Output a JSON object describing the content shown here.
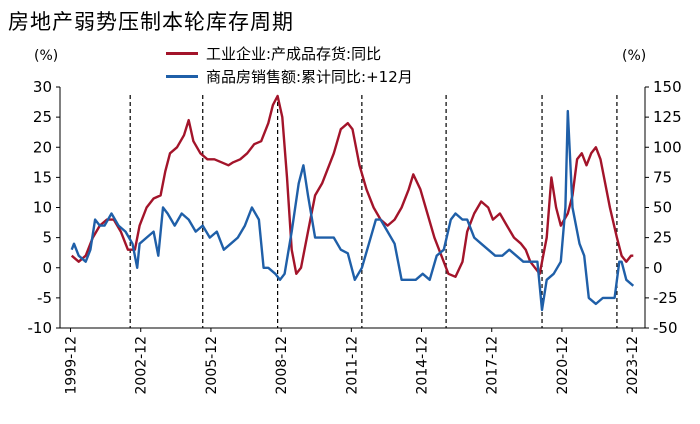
{
  "title": "房地产弱势压制本轮库存周期",
  "chart_data": {
    "type": "line",
    "title": "房地产弱势压制本轮库存周期",
    "left_axis_unit": "(%)",
    "right_axis_unit": "(%)",
    "ylim_left": [
      -10,
      30
    ],
    "ylim_right": [
      -50,
      150
    ],
    "yticks_left": [
      "30",
      "25",
      "20",
      "15",
      "10",
      "5",
      "0",
      "-5",
      "-10"
    ],
    "yticks_right": [
      "150",
      "125",
      "100",
      "75",
      "50",
      "25",
      "0",
      "-25",
      "-50"
    ],
    "x_tick_labels": [
      "1999-12",
      "2002-12",
      "2005-12",
      "2008-12",
      "2011-12",
      "2014-12",
      "2017-12",
      "2020-12",
      "2023-12"
    ],
    "vertical_dashed_lines_at": [
      2002.5,
      2005.6,
      2008.8,
      2012.4,
      2016.0,
      2020.1,
      2023.3
    ],
    "series": [
      {
        "name": "工业企业:产成品存货:同比",
        "axis": "left",
        "color": "#a3142a",
        "points": [
          [
            2000.0,
            2
          ],
          [
            2000.3,
            1
          ],
          [
            2000.6,
            2
          ],
          [
            2000.9,
            5
          ],
          [
            2001.2,
            7
          ],
          [
            2001.5,
            8
          ],
          [
            2001.8,
            8
          ],
          [
            2002.1,
            6
          ],
          [
            2002.4,
            3
          ],
          [
            2002.7,
            3
          ],
          [
            2002.9,
            7
          ],
          [
            2003.2,
            10
          ],
          [
            2003.5,
            11.5
          ],
          [
            2003.8,
            12
          ],
          [
            2004.0,
            16
          ],
          [
            2004.2,
            19
          ],
          [
            2004.5,
            20
          ],
          [
            2004.8,
            22
          ],
          [
            2005.0,
            24.5
          ],
          [
            2005.2,
            21
          ],
          [
            2005.5,
            19
          ],
          [
            2005.8,
            18
          ],
          [
            2006.1,
            18
          ],
          [
            2006.4,
            17.5
          ],
          [
            2006.7,
            17
          ],
          [
            2006.9,
            17.5
          ],
          [
            2007.2,
            18
          ],
          [
            2007.5,
            19
          ],
          [
            2007.8,
            20.5
          ],
          [
            2008.1,
            21
          ],
          [
            2008.4,
            24
          ],
          [
            2008.6,
            27
          ],
          [
            2008.8,
            28.5
          ],
          [
            2009.0,
            25
          ],
          [
            2009.2,
            15
          ],
          [
            2009.4,
            3
          ],
          [
            2009.6,
            -1
          ],
          [
            2009.8,
            0
          ],
          [
            2010.1,
            6
          ],
          [
            2010.4,
            12
          ],
          [
            2010.7,
            14
          ],
          [
            2010.9,
            16
          ],
          [
            2011.2,
            19
          ],
          [
            2011.5,
            23
          ],
          [
            2011.8,
            24
          ],
          [
            2012.0,
            23
          ],
          [
            2012.3,
            17
          ],
          [
            2012.6,
            13
          ],
          [
            2012.9,
            10
          ],
          [
            2013.2,
            8
          ],
          [
            2013.5,
            7
          ],
          [
            2013.8,
            8
          ],
          [
            2014.1,
            10
          ],
          [
            2014.4,
            13
          ],
          [
            2014.6,
            15.5
          ],
          [
            2014.9,
            13
          ],
          [
            2015.2,
            9
          ],
          [
            2015.5,
            5
          ],
          [
            2015.8,
            2
          ],
          [
            2016.1,
            -1
          ],
          [
            2016.4,
            -1.5
          ],
          [
            2016.7,
            1
          ],
          [
            2016.9,
            6
          ],
          [
            2017.2,
            9
          ],
          [
            2017.5,
            11
          ],
          [
            2017.8,
            10
          ],
          [
            2018.0,
            8
          ],
          [
            2018.3,
            9
          ],
          [
            2018.6,
            7
          ],
          [
            2018.9,
            5
          ],
          [
            2019.2,
            4
          ],
          [
            2019.4,
            3
          ],
          [
            2019.6,
            1
          ],
          [
            2019.8,
            0
          ],
          [
            2020.0,
            -1
          ],
          [
            2020.3,
            5
          ],
          [
            2020.5,
            15
          ],
          [
            2020.7,
            10
          ],
          [
            2020.9,
            7
          ],
          [
            2021.2,
            9
          ],
          [
            2021.4,
            12
          ],
          [
            2021.6,
            18
          ],
          [
            2021.8,
            19
          ],
          [
            2022.0,
            17
          ],
          [
            2022.2,
            19
          ],
          [
            2022.4,
            20
          ],
          [
            2022.6,
            18
          ],
          [
            2022.8,
            14
          ],
          [
            2023.0,
            10
          ],
          [
            2023.3,
            5
          ],
          [
            2023.5,
            2
          ],
          [
            2023.7,
            1
          ],
          [
            2023.9,
            2
          ],
          [
            2024.0,
            2
          ]
        ]
      },
      {
        "name": "商品房销售额:累计同比:+12月",
        "axis": "right",
        "color": "#1f5fa8",
        "points": [
          [
            2000.0,
            15
          ],
          [
            2000.1,
            20
          ],
          [
            2000.3,
            10
          ],
          [
            2000.6,
            5
          ],
          [
            2000.8,
            15
          ],
          [
            2001.0,
            40
          ],
          [
            2001.2,
            35
          ],
          [
            2001.4,
            35
          ],
          [
            2001.7,
            45
          ],
          [
            2002.0,
            35
          ],
          [
            2002.3,
            30
          ],
          [
            2002.6,
            20
          ],
          [
            2002.8,
            0
          ],
          [
            2002.9,
            20
          ],
          [
            2003.2,
            25
          ],
          [
            2003.5,
            30
          ],
          [
            2003.7,
            10
          ],
          [
            2003.9,
            50
          ],
          [
            2004.1,
            45
          ],
          [
            2004.4,
            35
          ],
          [
            2004.7,
            45
          ],
          [
            2005.0,
            40
          ],
          [
            2005.3,
            30
          ],
          [
            2005.6,
            35
          ],
          [
            2005.9,
            25
          ],
          [
            2006.2,
            30
          ],
          [
            2006.5,
            15
          ],
          [
            2006.8,
            20
          ],
          [
            2007.1,
            25
          ],
          [
            2007.4,
            35
          ],
          [
            2007.7,
            50
          ],
          [
            2008.0,
            40
          ],
          [
            2008.2,
            0
          ],
          [
            2008.4,
            0
          ],
          [
            2008.7,
            -5
          ],
          [
            2008.9,
            -10
          ],
          [
            2009.1,
            -5
          ],
          [
            2009.4,
            30
          ],
          [
            2009.7,
            70
          ],
          [
            2009.9,
            85
          ],
          [
            2010.1,
            60
          ],
          [
            2010.4,
            25
          ],
          [
            2010.7,
            25
          ],
          [
            2010.9,
            25
          ],
          [
            2011.2,
            25
          ],
          [
            2011.5,
            15
          ],
          [
            2011.8,
            12
          ],
          [
            2012.1,
            -10
          ],
          [
            2012.4,
            0
          ],
          [
            2012.7,
            20
          ],
          [
            2013.0,
            40
          ],
          [
            2013.2,
            40
          ],
          [
            2013.5,
            30
          ],
          [
            2013.8,
            20
          ],
          [
            2014.1,
            -10
          ],
          [
            2014.4,
            -10
          ],
          [
            2014.7,
            -10
          ],
          [
            2015.0,
            -5
          ],
          [
            2015.3,
            -10
          ],
          [
            2015.6,
            10
          ],
          [
            2015.9,
            15
          ],
          [
            2016.2,
            40
          ],
          [
            2016.4,
            45
          ],
          [
            2016.7,
            40
          ],
          [
            2016.9,
            40
          ],
          [
            2017.2,
            25
          ],
          [
            2017.5,
            20
          ],
          [
            2017.8,
            15
          ],
          [
            2018.1,
            10
          ],
          [
            2018.4,
            10
          ],
          [
            2018.7,
            15
          ],
          [
            2019.0,
            10
          ],
          [
            2019.3,
            5
          ],
          [
            2019.6,
            5
          ],
          [
            2019.9,
            5
          ],
          [
            2020.1,
            -35
          ],
          [
            2020.3,
            -10
          ],
          [
            2020.6,
            -5
          ],
          [
            2020.9,
            5
          ],
          [
            2021.1,
            50
          ],
          [
            2021.2,
            130
          ],
          [
            2021.4,
            50
          ],
          [
            2021.7,
            20
          ],
          [
            2021.9,
            10
          ],
          [
            2022.1,
            -25
          ],
          [
            2022.4,
            -30
          ],
          [
            2022.7,
            -25
          ],
          [
            2022.9,
            -25
          ],
          [
            2023.2,
            -25
          ],
          [
            2023.4,
            5
          ],
          [
            2023.5,
            5
          ],
          [
            2023.7,
            -10
          ],
          [
            2024.0,
            -15
          ]
        ]
      }
    ]
  }
}
